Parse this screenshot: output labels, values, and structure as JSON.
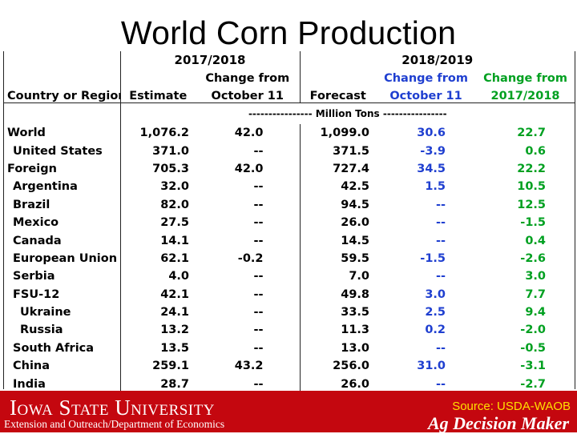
{
  "title": "World Corn Production",
  "header": {
    "group1": "2017/2018",
    "group2": "2018/2019",
    "col0": "Country or Region",
    "col1": "Estimate",
    "col2a": "Change from",
    "col2b": "October 11",
    "col3": "Forecast",
    "col4a": "Change from",
    "col4b": "October 11",
    "col5a": "Change from",
    "col5b": "2017/2018",
    "units": "---------------- Million Tons ----------------"
  },
  "rows": [
    {
      "name": "World",
      "indent": 0,
      "v1": "1,076.2",
      "v2": "42.0",
      "v3": "1,099.0",
      "v4": "30.6",
      "v5": "22.7"
    },
    {
      "name": "United States",
      "indent": 1,
      "v1": "371.0",
      "v2": "--",
      "v3": "371.5",
      "v4": "-3.9",
      "v5": "0.6"
    },
    {
      "name": "Foreign",
      "indent": 0,
      "v1": "705.3",
      "v2": "42.0",
      "v3": "727.4",
      "v4": "34.5",
      "v5": "22.2"
    },
    {
      "name": "Argentina",
      "indent": 1,
      "v1": "32.0",
      "v2": "--",
      "v3": "42.5",
      "v4": "1.5",
      "v5": "10.5"
    },
    {
      "name": "Brazil",
      "indent": 1,
      "v1": "82.0",
      "v2": "--",
      "v3": "94.5",
      "v4": "--",
      "v5": "12.5"
    },
    {
      "name": "Mexico",
      "indent": 1,
      "v1": "27.5",
      "v2": "--",
      "v3": "26.0",
      "v4": "--",
      "v5": "-1.5"
    },
    {
      "name": "Canada",
      "indent": 1,
      "v1": "14.1",
      "v2": "--",
      "v3": "14.5",
      "v4": "--",
      "v5": "0.4"
    },
    {
      "name": "European Union",
      "indent": 1,
      "v1": "62.1",
      "v2": "-0.2",
      "v3": "59.5",
      "v4": "-1.5",
      "v5": "-2.6"
    },
    {
      "name": "Serbia",
      "indent": 1,
      "v1": "4.0",
      "v2": "--",
      "v3": "7.0",
      "v4": "--",
      "v5": "3.0"
    },
    {
      "name": "FSU-12",
      "indent": 1,
      "v1": "42.1",
      "v2": "--",
      "v3": "49.8",
      "v4": "3.0",
      "v5": "7.7"
    },
    {
      "name": "Ukraine",
      "indent": 2,
      "v1": "24.1",
      "v2": "--",
      "v3": "33.5",
      "v4": "2.5",
      "v5": "9.4"
    },
    {
      "name": "Russia",
      "indent": 2,
      "v1": "13.2",
      "v2": "--",
      "v3": "11.3",
      "v4": "0.2",
      "v5": "-2.0"
    },
    {
      "name": "South Africa",
      "indent": 1,
      "v1": "13.5",
      "v2": "--",
      "v3": "13.0",
      "v4": "--",
      "v5": "-0.5"
    },
    {
      "name": "China",
      "indent": 1,
      "v1": "259.1",
      "v2": "43.2",
      "v3": "256.0",
      "v4": "31.0",
      "v5": "-3.1"
    },
    {
      "name": "India",
      "indent": 1,
      "v1": "28.7",
      "v2": "--",
      "v3": "26.0",
      "v4": "--",
      "v5": "-2.7"
    }
  ],
  "colors": {
    "change_oct_2018": "#1f3fd0",
    "change_2017": "#00a020",
    "footer_bg": "#c4070f",
    "source_text": "#ffe000"
  },
  "footer": {
    "university": "Iowa State University",
    "department": "Extension and Outreach/Department of Economics",
    "source": "Source: USDA-WAOB",
    "brand": "Ag Decision Maker"
  }
}
